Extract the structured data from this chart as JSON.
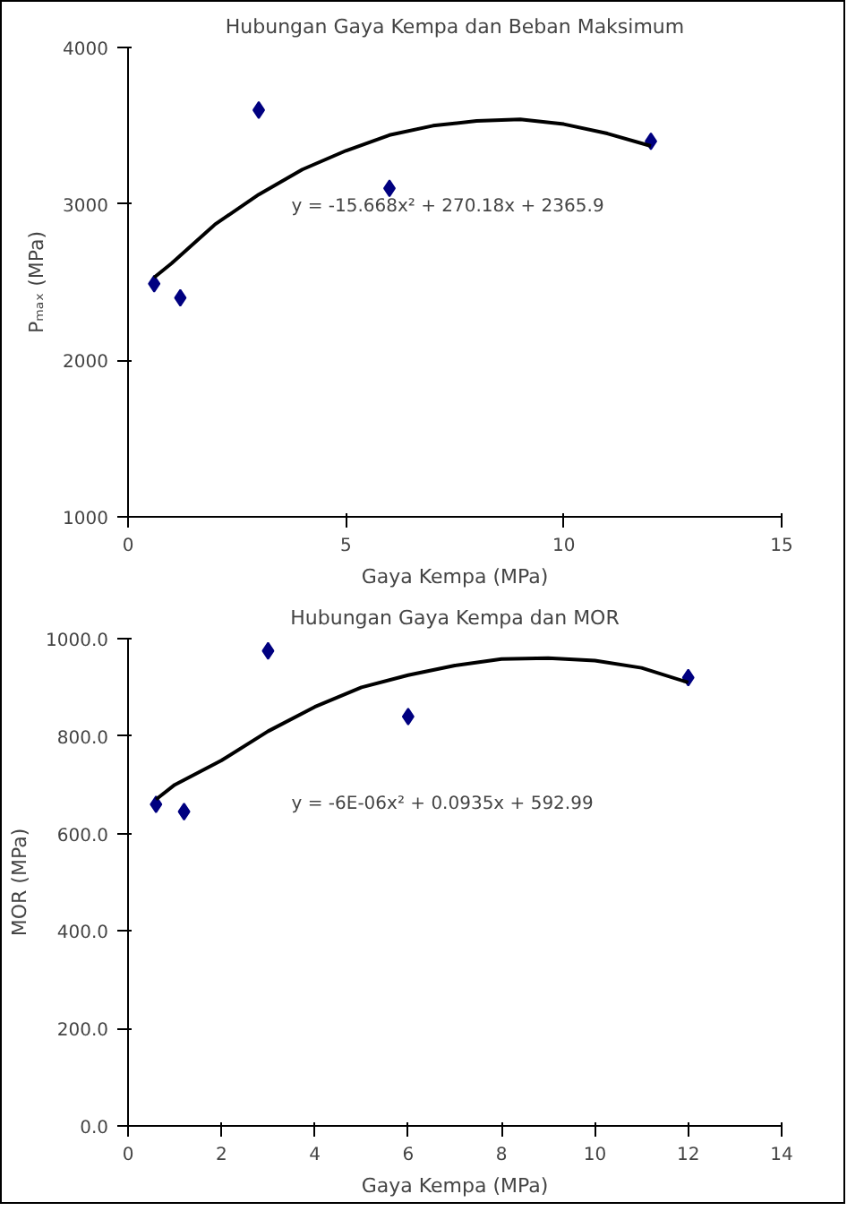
{
  "chart_data": [
    {
      "type": "scatter",
      "title": "Hubungan Gaya Kempa dan Beban Maksimum",
      "xlabel": "Gaya Kempa (MPa)",
      "ylabel": "Pₘₐₓ (MPa)",
      "xlim": [
        0,
        15
      ],
      "xticks": [
        0,
        5,
        10,
        15
      ],
      "ylim": [
        1000,
        4000
      ],
      "yticks": [
        1000,
        2000,
        3000,
        4000
      ],
      "grid": false,
      "annotations": [
        "y = -15.668x² + 270.18x + 2365.9"
      ],
      "series": [
        {
          "marker": "diamond",
          "color": "#000080",
          "x": [
            0.6,
            1.2,
            3,
            6,
            12
          ],
          "values": [
            2490,
            2400,
            3600,
            3100,
            3400
          ]
        },
        {
          "type": "line",
          "color": "#000000",
          "x": [
            0.6,
            1,
            2,
            3,
            4,
            5,
            6,
            7,
            8,
            9,
            10,
            11,
            12
          ],
          "values": [
            2530,
            2620,
            2870,
            3060,
            3220,
            3340,
            3440,
            3500,
            3530,
            3540,
            3510,
            3450,
            3370
          ]
        }
      ]
    },
    {
      "type": "scatter",
      "title": "Hubungan Gaya Kempa dan MOR",
      "xlabel": "Gaya Kempa (MPa)",
      "ylabel": "MOR (MPa)",
      "xlim": [
        0,
        14
      ],
      "xticks": [
        0,
        2,
        4,
        6,
        8,
        10,
        12,
        14
      ],
      "ylim": [
        0,
        1000
      ],
      "yticks": [
        {
          "value": 0,
          "label": "0.0"
        },
        {
          "value": 200,
          "label": "200.0"
        },
        {
          "value": 400,
          "label": "400.0"
        },
        {
          "value": 600,
          "label": "600.0"
        },
        {
          "value": 800,
          "label": "800.0"
        },
        {
          "value": 1000,
          "label": "1000.0"
        }
      ],
      "grid": false,
      "annotations": [
        "y = -6E-06x² + 0.0935x + 592.99"
      ],
      "series": [
        {
          "marker": "diamond",
          "color": "#000080",
          "x": [
            0.6,
            1.2,
            3,
            6,
            12
          ],
          "values": [
            660,
            645,
            975,
            840,
            920
          ]
        },
        {
          "type": "line",
          "color": "#000000",
          "x": [
            0.6,
            1,
            2,
            3,
            4,
            5,
            6,
            7,
            8,
            9,
            10,
            11,
            12
          ],
          "values": [
            670,
            700,
            750,
            810,
            860,
            900,
            925,
            945,
            958,
            960,
            955,
            940,
            910
          ]
        }
      ]
    }
  ]
}
